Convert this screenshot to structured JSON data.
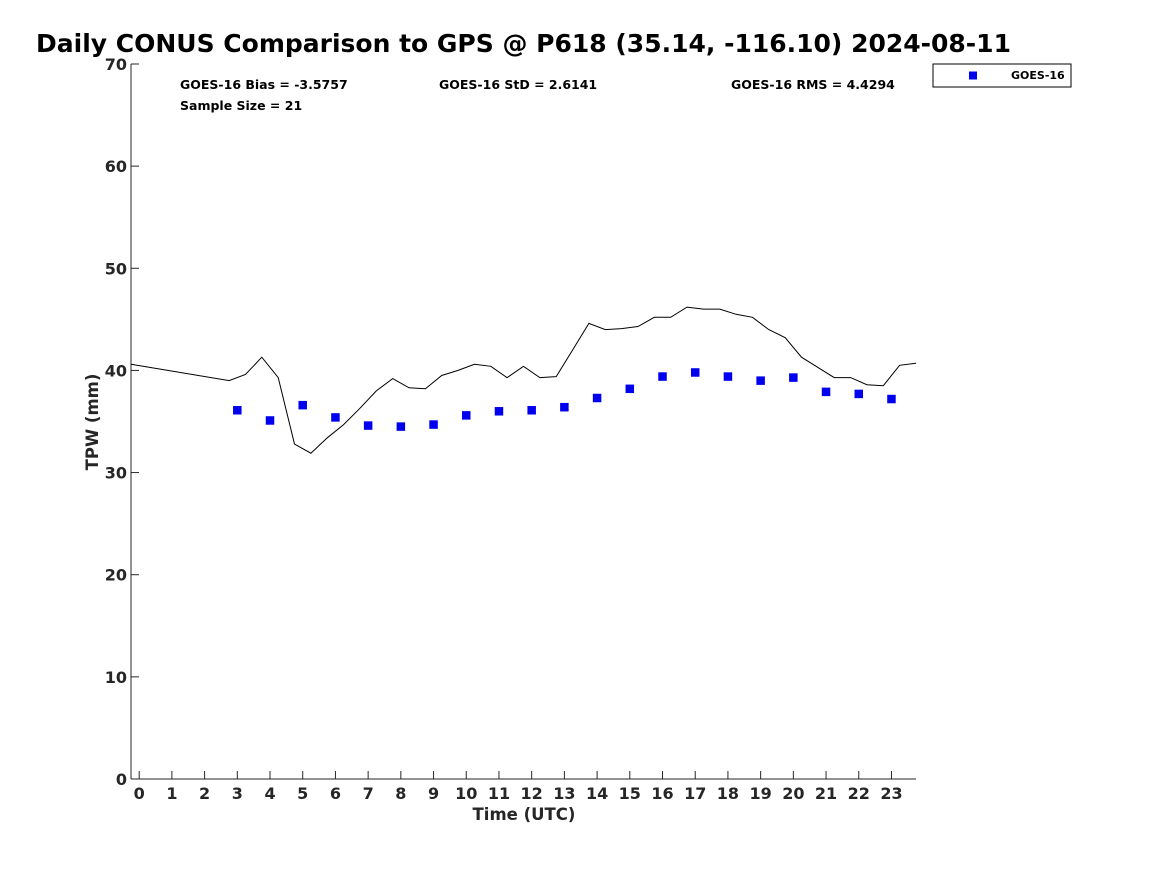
{
  "chart_data": {
    "type": "scatter",
    "title": "Daily CONUS Comparison to GPS @ P618 (35.14, -116.10) 2024-08-11",
    "xlabel": "Time (UTC)",
    "ylabel": "TPW (mm)",
    "xlim": [
      -0.25,
      23.75
    ],
    "ylim": [
      0,
      70
    ],
    "x_ticks": [
      "0",
      "1",
      "2",
      "3",
      "4",
      "5",
      "6",
      "7",
      "8",
      "9",
      "10",
      "11",
      "12",
      "13",
      "14",
      "15",
      "16",
      "17",
      "18",
      "19",
      "20",
      "21",
      "22",
      "23"
    ],
    "y_ticks": [
      "0",
      "10",
      "20",
      "30",
      "40",
      "50",
      "60",
      "70"
    ],
    "grid": false,
    "legend_position": "top-right",
    "stats": {
      "bias": "GOES-16 Bias = -3.5757",
      "std": "GOES-16 StD = 2.6141",
      "rms": "GOES-16 RMS = 4.4294",
      "sample": "Sample Size = 21"
    },
    "series": [
      {
        "name": "GOES-16",
        "kind": "scatter",
        "marker": "square",
        "color": "#0000ee",
        "x": [
          3,
          4,
          5,
          6,
          7,
          8,
          9,
          10,
          11,
          12,
          13,
          14,
          15,
          16,
          17,
          18,
          19,
          20,
          21,
          22,
          23
        ],
        "y": [
          36.1,
          35.1,
          36.6,
          35.4,
          34.6,
          34.5,
          34.7,
          35.6,
          36.0,
          36.1,
          36.4,
          37.3,
          38.2,
          39.4,
          39.8,
          39.4,
          39.0,
          39.3,
          37.9,
          37.7,
          37.2
        ]
      },
      {
        "kind": "line",
        "color": "#000000",
        "x": [
          -0.25,
          2.75,
          3.25,
          3.75,
          4.25,
          4.75,
          5.25,
          5.75,
          6.25,
          6.75,
          7.25,
          7.75,
          8.25,
          8.75,
          9.25,
          9.75,
          10.25,
          10.75,
          11.25,
          11.75,
          12.25,
          12.75,
          13.25,
          13.75,
          14.25,
          14.75,
          15.25,
          15.75,
          16.25,
          16.75,
          17.25,
          17.75,
          18.25,
          18.75,
          19.25,
          19.75,
          20.25,
          20.75,
          21.25,
          21.75,
          22.25,
          22.75,
          23.25,
          23.75
        ],
        "y": [
          40.6,
          39.0,
          39.6,
          41.3,
          39.3,
          32.8,
          31.9,
          33.4,
          34.7,
          36.3,
          38.0,
          39.2,
          38.3,
          38.2,
          39.5,
          40.0,
          40.6,
          40.4,
          39.3,
          40.4,
          39.3,
          39.4,
          42.0,
          44.6,
          44.0,
          44.1,
          44.3,
          45.2,
          45.2,
          46.2,
          46.0,
          46.0,
          45.5,
          45.2,
          44.0,
          43.2,
          41.3,
          40.3,
          39.3,
          39.3,
          38.6,
          38.5,
          40.5,
          40.7
        ]
      }
    ]
  }
}
